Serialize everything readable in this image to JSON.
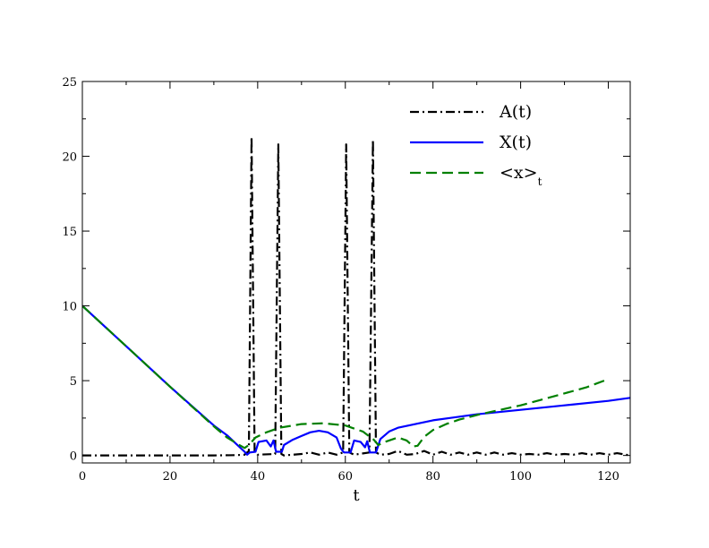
{
  "chart_data": {
    "type": "line",
    "title": "",
    "xlabel": "t",
    "ylabel": "",
    "xlim": [
      0,
      125
    ],
    "ylim": [
      -0.5,
      25
    ],
    "x_ticks": [
      0,
      20,
      40,
      60,
      80,
      100,
      120
    ],
    "y_ticks": [
      0,
      5,
      10,
      15,
      20,
      25
    ],
    "grid": false,
    "legend": {
      "placement": "top-right"
    },
    "series": [
      {
        "name": "A(t)",
        "color": "#000000",
        "dash": "dash-dot",
        "points": [
          [
            0,
            0
          ],
          [
            10,
            0
          ],
          [
            20,
            0
          ],
          [
            30,
            0
          ],
          [
            35,
            0.02
          ],
          [
            37,
            0.05
          ],
          [
            38,
            0.3
          ],
          [
            38.6,
            21.3
          ],
          [
            39.3,
            0.3
          ],
          [
            40,
            0.05
          ],
          [
            44,
            0.1
          ],
          [
            44.7,
            20.8
          ],
          [
            45.4,
            0.1
          ],
          [
            46,
            0
          ],
          [
            50,
            0.1
          ],
          [
            52,
            0.2
          ],
          [
            54,
            0.05
          ],
          [
            56,
            0.2
          ],
          [
            58,
            0.05
          ],
          [
            59.5,
            0.2
          ],
          [
            60.2,
            20.8
          ],
          [
            60.9,
            0.2
          ],
          [
            62,
            0.05
          ],
          [
            65.5,
            0.2
          ],
          [
            66.3,
            21.1
          ],
          [
            67,
            0.2
          ],
          [
            68,
            0.05
          ],
          [
            70,
            0.1
          ],
          [
            72,
            0.3
          ],
          [
            74,
            0.05
          ],
          [
            76,
            0.1
          ],
          [
            78,
            0.3
          ],
          [
            80,
            0.05
          ],
          [
            82,
            0.25
          ],
          [
            84,
            0.05
          ],
          [
            86,
            0.2
          ],
          [
            88,
            0.05
          ],
          [
            90,
            0.2
          ],
          [
            92,
            0.05
          ],
          [
            94,
            0.2
          ],
          [
            96,
            0.05
          ],
          [
            98,
            0.15
          ],
          [
            100,
            0.05
          ],
          [
            102,
            0.1
          ],
          [
            104,
            0.05
          ],
          [
            106,
            0.15
          ],
          [
            108,
            0.05
          ],
          [
            110,
            0.1
          ],
          [
            112,
            0.05
          ],
          [
            114,
            0.15
          ],
          [
            116,
            0.05
          ],
          [
            118,
            0.15
          ],
          [
            120,
            0.05
          ],
          [
            122,
            0.15
          ],
          [
            125,
            0
          ]
        ]
      },
      {
        "name": "X(t)",
        "color": "#0000ff",
        "dash": "solid",
        "points": [
          [
            0,
            10
          ],
          [
            10,
            7.3
          ],
          [
            20,
            4.6
          ],
          [
            30,
            2.0
          ],
          [
            33,
            1.35
          ],
          [
            35,
            0.8
          ],
          [
            37,
            0.25
          ],
          [
            37.6,
            0.05
          ],
          [
            38.2,
            0.2
          ],
          [
            39.5,
            0.25
          ],
          [
            40.2,
            0.9
          ],
          [
            42,
            1.0
          ],
          [
            43,
            0.6
          ],
          [
            43.6,
            1.0
          ],
          [
            44.2,
            0.25
          ],
          [
            45.5,
            0.25
          ],
          [
            46,
            0.7
          ],
          [
            48,
            1.05
          ],
          [
            50,
            1.3
          ],
          [
            52,
            1.55
          ],
          [
            54,
            1.65
          ],
          [
            56,
            1.55
          ],
          [
            58,
            1.2
          ],
          [
            59,
            0.45
          ],
          [
            59.7,
            0.2
          ],
          [
            61.2,
            0.2
          ],
          [
            62,
            1.0
          ],
          [
            63.5,
            0.9
          ],
          [
            64.5,
            0.55
          ],
          [
            65,
            0.95
          ],
          [
            65.6,
            0.2
          ],
          [
            67,
            0.2
          ],
          [
            68,
            1.1
          ],
          [
            70,
            1.6
          ],
          [
            72,
            1.85
          ],
          [
            76,
            2.1
          ],
          [
            80,
            2.35
          ],
          [
            90,
            2.75
          ],
          [
            100,
            3.05
          ],
          [
            110,
            3.35
          ],
          [
            120,
            3.65
          ],
          [
            125,
            3.85
          ]
        ]
      },
      {
        "name": "<x>_t",
        "color": "#008000",
        "dash": "dashed",
        "points": [
          [
            0,
            10
          ],
          [
            10,
            7.3
          ],
          [
            20,
            4.6
          ],
          [
            30,
            1.95
          ],
          [
            33,
            1.2
          ],
          [
            35.5,
            0.75
          ],
          [
            37,
            0.5
          ],
          [
            38,
            0.7
          ],
          [
            39.5,
            1.2
          ],
          [
            42,
            1.55
          ],
          [
            45,
            1.85
          ],
          [
            50,
            2.1
          ],
          [
            55,
            2.15
          ],
          [
            60,
            2.0
          ],
          [
            64,
            1.6
          ],
          [
            66.5,
            1.05
          ],
          [
            67.5,
            0.7
          ],
          [
            69,
            0.9
          ],
          [
            72,
            1.2
          ],
          [
            74,
            1.0
          ],
          [
            75.5,
            0.6
          ],
          [
            76.5,
            0.65
          ],
          [
            78,
            1.25
          ],
          [
            80,
            1.7
          ],
          [
            83,
            2.1
          ],
          [
            86,
            2.4
          ],
          [
            90,
            2.7
          ],
          [
            100,
            3.35
          ],
          [
            110,
            4.15
          ],
          [
            115,
            4.55
          ],
          [
            120,
            5.1
          ]
        ]
      }
    ]
  }
}
